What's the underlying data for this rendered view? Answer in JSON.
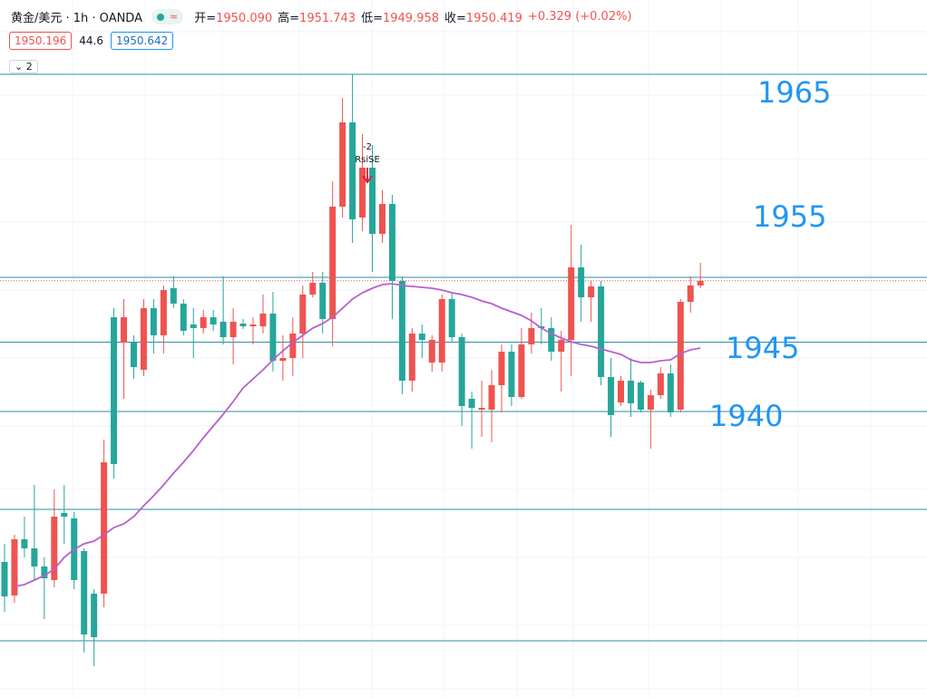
{
  "chart_data": {
    "type": "candlestick",
    "symbol": "黄金/美元 · 1h · OANDA",
    "ohlc": [
      {
        "label": "开=",
        "value": "1950.090"
      },
      {
        "label": "高=",
        "value": "1951.743"
      },
      {
        "label": "低=",
        "value": "1949.958"
      },
      {
        "label": "收=",
        "value": "1950.419"
      }
    ],
    "change": "+0.329 (+0.02%)",
    "legend_values": [
      "1950.196",
      "44.6",
      "1950.642"
    ],
    "indicator_count": "2",
    "up_color": "#26a69a",
    "down_color": "#ef5350",
    "ma_color": "#b660cd",
    "hline_color": "#2e8ea3",
    "ylim": [
      1913.68,
      1975.2
    ],
    "open": [
      1922.56,
      1927.6,
      1926.8,
      1925.2,
      1924.16,
      1929.6,
      1929.6,
      1924.0,
      1919.2,
      1918.96,
      1934.4,
      1934.24,
      1947.2,
      1942.8,
      1948.0,
      1945.6,
      1949.6,
      1948.4,
      1946.0,
      1946.24,
      1947.2,
      1946.56,
      1945.44,
      1946.8,
      1946.4,
      1946.56,
      1947.52,
      1943.36,
      1943.6,
      1945.76,
      1949.2,
      1950.24,
      1947.04,
      1956.96,
      1964.4,
      1955.84,
      1960.4,
      1954.56,
      1957.2,
      1950.4,
      1941.6,
      1945.76,
      1945.2,
      1945.2,
      1948.8,
      1945.44,
      1939.36,
      1939.2,
      1939.2,
      1941.2,
      1944.16,
      1940.16,
      1944.8,
      1946.24,
      1946.24,
      1944.16,
      1945.2,
      1951.6,
      1948.96,
      1949.92,
      1941.92,
      1938.56,
      1941.6,
      1939.6,
      1939.04,
      1940.32,
      1942.24,
      1938.8,
      1948.56,
      1950.0,
      1950.4
    ],
    "high": [
      1927.2,
      1928.0,
      1929.6,
      1932.4,
      1926.0,
      1932.0,
      1932.4,
      1930.0,
      1926.8,
      1923.2,
      1936.4,
      1948.0,
      1948.8,
      1945.6,
      1948.8,
      1948.8,
      1950.0,
      1950.8,
      1948.8,
      1948.0,
      1947.84,
      1947.84,
      1950.8,
      1948.0,
      1947.04,
      1947.2,
      1949.2,
      1949.44,
      1945.6,
      1947.2,
      1950.0,
      1951.2,
      1951.2,
      1959.2,
      1966.56,
      1968.64,
      1963.36,
      1962.4,
      1958.4,
      1958.0,
      1950.8,
      1946.24,
      1946.56,
      1945.6,
      1949.2,
      1949.44,
      1945.76,
      1940.64,
      1941.6,
      1942.56,
      1944.8,
      1944.8,
      1946.24,
      1947.6,
      1948.0,
      1947.2,
      1946.0,
      1955.36,
      1953.6,
      1950.4,
      1950.4,
      1943.6,
      1942.0,
      1943.6,
      1941.6,
      1940.8,
      1942.8,
      1943.04,
      1948.8,
      1950.8,
      1952.0
    ],
    "low": [
      1921.2,
      1922.0,
      1926.0,
      1924.0,
      1920.56,
      1923.36,
      1927.2,
      1923.2,
      1917.6,
      1916.4,
      1921.6,
      1932.96,
      1940.0,
      1941.76,
      1942.0,
      1944.0,
      1944.0,
      1948.0,
      1945.6,
      1943.6,
      1945.76,
      1946.0,
      1944.8,
      1943.04,
      1946.16,
      1944.8,
      1945.76,
      1942.4,
      1941.6,
      1942.0,
      1943.6,
      1948.96,
      1945.76,
      1944.64,
      1956.0,
      1953.76,
      1954.8,
      1951.2,
      1953.76,
      1947.04,
      1940.4,
      1940.64,
      1943.6,
      1942.4,
      1942.4,
      1944.96,
      1937.6,
      1935.6,
      1936.64,
      1936.16,
      1938.8,
      1939.36,
      1940.0,
      1944.0,
      1944.8,
      1943.36,
      1940.64,
      1942.0,
      1946.8,
      1946.8,
      1941.2,
      1936.64,
      1939.36,
      1938.4,
      1938.8,
      1935.6,
      1940.0,
      1938.4,
      1938.8,
      1947.6,
      1949.76
    ],
    "close": [
      1925.6,
      1922.64,
      1927.6,
      1926.8,
      1925.2,
      1924.0,
      1929.92,
      1929.44,
      1926.56,
      1922.8,
      1922.8,
      1947.2,
      1944.96,
      1944.96,
      1942.56,
      1948.0,
      1945.6,
      1949.76,
      1948.4,
      1946.56,
      1946.24,
      1947.2,
      1946.8,
      1945.44,
      1946.64,
      1946.4,
      1946.4,
      1947.52,
      1943.36,
      1943.6,
      1945.76,
      1949.2,
      1950.24,
      1947.04,
      1956.96,
      1964.4,
      1956.0,
      1960.4,
      1954.56,
      1957.2,
      1950.4,
      1941.6,
      1945.76,
      1943.2,
      1943.2,
      1948.8,
      1945.44,
      1940.0,
      1939.04,
      1939.04,
      1941.2,
      1944.16,
      1940.16,
      1944.8,
      1946.4,
      1946.24,
      1944.16,
      1945.2,
      1951.6,
      1948.96,
      1949.92,
      1941.92,
      1939.68,
      1941.6,
      1941.44,
      1939.04,
      1940.32,
      1942.24,
      1939.04,
      1948.56,
      1950.0
    ],
    "ma": [
      null,
      1923.44,
      1923.6,
      1924.0,
      1924.4,
      1924.96,
      1926.0,
      1926.72,
      1927.2,
      1927.44,
      1928.0,
      1928.64,
      1928.96,
      1929.6,
      1930.56,
      1931.44,
      1932.4,
      1933.44,
      1934.4,
      1935.44,
      1936.56,
      1937.6,
      1938.64,
      1939.76,
      1940.96,
      1941.76,
      1942.56,
      1943.44,
      1944.24,
      1944.96,
      1945.6,
      1946.24,
      1946.64,
      1947.2,
      1948.0,
      1948.8,
      1949.36,
      1949.76,
      1950.08,
      1950.16,
      1950.0,
      1949.92,
      1949.84,
      1949.76,
      1949.6,
      1949.36,
      1949.2,
      1948.96,
      1948.64,
      1948.4,
      1948.0,
      1947.68,
      1947.36,
      1946.88,
      1946.24,
      1945.76,
      1945.36,
      1945.04,
      1944.8,
      1944.64,
      1944.4,
      1944.16,
      1943.92,
      1943.44,
      1943.2,
      1943.2,
      1943.36,
      1943.44,
      1944.0,
      1944.32,
      1944.48
    ],
    "hlines": [
      1968.64,
      1950.72,
      1945.0,
      1938.88,
      1930.24,
      1918.64
    ],
    "annotations": [
      "1965",
      "1955",
      "1945",
      "1940"
    ],
    "signal": {
      "index": 36,
      "count": "-2",
      "label": "RsiSE"
    }
  }
}
